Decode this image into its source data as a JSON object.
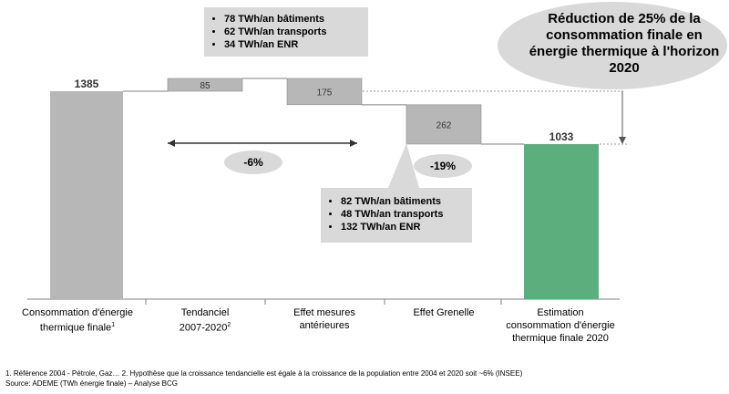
{
  "chart_data": {
    "type": "bar",
    "subtype": "waterfall",
    "categories": [
      "Consommation d'énergie thermique finale",
      "Tendanciel 2007-2020",
      "Effet mesures antérieures",
      "Effet Grenelle",
      "Estimation consommation d'énergie thermique finale 2020"
    ],
    "category_label_lines": [
      [
        "Consommation d'énergie",
        "thermique finale",
        "1"
      ],
      [
        "Tendanciel",
        "2007-2020",
        "2"
      ],
      [
        "Effet mesures",
        "antérieures",
        ""
      ],
      [
        "Effet Grenelle",
        "",
        ""
      ],
      [
        "Estimation",
        "consommation d'énergie",
        "thermique finale 2020"
      ]
    ],
    "values": [
      1385,
      85,
      -175,
      -262,
      1033
    ],
    "bar_kind": [
      "total",
      "increase",
      "decrease",
      "decrease",
      "total"
    ],
    "data_labels": [
      "1385",
      "85",
      "175",
      "262",
      "1033"
    ],
    "ylim": [
      0,
      1385
    ],
    "colors": {
      "total": "#b7b7b7",
      "step": "#b7b7b7",
      "final": "#5caf7d",
      "callout": "#d9d9d9"
    },
    "annotations": {
      "pct_first": "-6%",
      "pct_grenelle": "-19%",
      "callout": "Réduction de 25% de la consommation finale en énergie thermique à l'horizon 2020"
    },
    "breakdown_top": [
      "78 TWh/an bâtiments",
      "62 TWh/an transports",
      "34 TWh/an ENR"
    ],
    "breakdown_bottom": [
      "82 TWh/an bâtiments",
      "48 TWh/an transports",
      "132 TWh/an ENR"
    ]
  },
  "footnotes": {
    "line1": "1. Référence 2004 - Pétrole, Gaz…  2. Hypothèse que la croissance tendancielle est égale à la croissance de la population entre 2004 et 2020 soit ~6% (INSEE)",
    "line2": "Source: ADEME (TWh énergie finale) – Analyse BCG"
  }
}
